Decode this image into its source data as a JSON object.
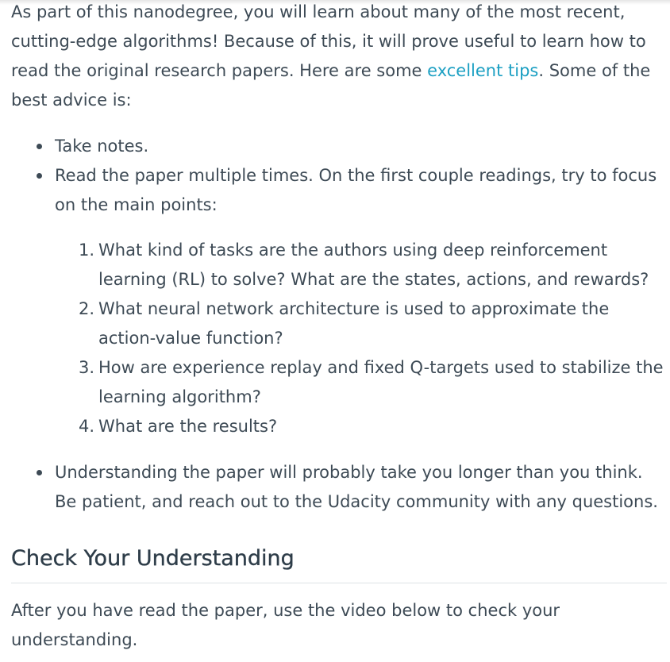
{
  "intro": {
    "before_link": "As part of this nanodegree, you will learn about many of the most recent, cutting-edge algorithms! Because of this, it will prove useful to learn how to read the original research papers. Here are some ",
    "link_text": "excellent tips",
    "after_link": ". Some of the best advice is:"
  },
  "tips": [
    {
      "text": "Take notes."
    },
    {
      "text": "Read the paper multiple times. On the first couple readings, try to focus on the main points:"
    },
    {
      "text": "Understanding the paper will probably take you longer than you think. Be patient, and reach out to the Udacity community with any questions."
    }
  ],
  "questions": [
    {
      "number": "1.",
      "text": "What kind of tasks are the authors using deep reinforcement learning (RL) to solve? What are the states, actions, and rewards?"
    },
    {
      "number": "2.",
      "text": "What neural network architecture is used to approximate the action-value function?"
    },
    {
      "number": "3.",
      "text": "How are experience replay and fixed Q-targets used to stabilize the learning algorithm?"
    },
    {
      "number": "4.",
      "text": "What are the results?"
    }
  ],
  "section": {
    "heading": "Check Your Understanding",
    "body": "After you have read the paper, use the video below to check your understanding."
  }
}
